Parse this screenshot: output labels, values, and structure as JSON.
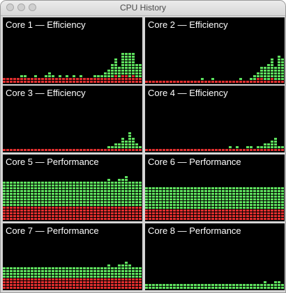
{
  "window": {
    "title": "CPU History",
    "traffic_lights": [
      "close-button",
      "minimize-button",
      "zoom-button"
    ]
  },
  "colors": {
    "panel_bg": "#000000",
    "user_load": "#5ee05e",
    "system_load": "#e02e2e"
  },
  "cores": [
    {
      "label": "Core 1 — Efficiency",
      "user": [
        0,
        0,
        0,
        0,
        0,
        1,
        1,
        0,
        0,
        1,
        0,
        0,
        1,
        2,
        1,
        0,
        1,
        0,
        1,
        0,
        1,
        0,
        1,
        0,
        0,
        0,
        1,
        1,
        1,
        2,
        3,
        5,
        6,
        4,
        8,
        8,
        9,
        8,
        5,
        5
      ],
      "system": [
        2,
        2,
        2,
        2,
        2,
        2,
        2,
        2,
        2,
        2,
        2,
        2,
        2,
        2,
        2,
        2,
        2,
        2,
        2,
        2,
        2,
        2,
        2,
        2,
        2,
        2,
        2,
        2,
        2,
        2,
        2,
        2,
        3,
        2,
        3,
        3,
        2,
        3,
        2,
        2
      ]
    },
    {
      "label": "Core 2 — Efficiency",
      "user": [
        0,
        0,
        0,
        0,
        0,
        0,
        0,
        0,
        0,
        0,
        0,
        0,
        0,
        0,
        0,
        0,
        1,
        0,
        0,
        1,
        0,
        0,
        0,
        0,
        0,
        0,
        0,
        1,
        0,
        0,
        1,
        2,
        2,
        4,
        5,
        6,
        7,
        5,
        9,
        8
      ],
      "system": [
        1,
        1,
        1,
        1,
        1,
        1,
        1,
        1,
        1,
        1,
        1,
        1,
        1,
        1,
        1,
        1,
        1,
        1,
        1,
        1,
        1,
        1,
        1,
        1,
        1,
        1,
        1,
        1,
        1,
        1,
        1,
        1,
        2,
        2,
        1,
        1,
        2,
        1,
        1,
        1
      ]
    },
    {
      "label": "Core 3 — Efficiency",
      "user": [
        0,
        0,
        0,
        0,
        0,
        0,
        0,
        0,
        0,
        0,
        0,
        0,
        0,
        0,
        0,
        0,
        0,
        0,
        0,
        0,
        0,
        0,
        0,
        0,
        0,
        0,
        0,
        0,
        0,
        0,
        1,
        1,
        2,
        2,
        4,
        3,
        6,
        4,
        2,
        1
      ],
      "system": [
        1,
        1,
        1,
        1,
        1,
        1,
        1,
        1,
        1,
        1,
        1,
        1,
        1,
        1,
        1,
        1,
        1,
        1,
        1,
        1,
        1,
        1,
        1,
        1,
        1,
        1,
        1,
        1,
        1,
        1,
        1,
        1,
        1,
        1,
        1,
        1,
        1,
        1,
        1,
        1
      ]
    },
    {
      "label": "Core 4 — Efficiency",
      "user": [
        0,
        0,
        0,
        0,
        0,
        0,
        0,
        0,
        0,
        0,
        0,
        0,
        0,
        0,
        0,
        0,
        0,
        0,
        0,
        0,
        0,
        0,
        0,
        0,
        1,
        0,
        1,
        0,
        0,
        1,
        1,
        0,
        1,
        1,
        2,
        2,
        3,
        4,
        1,
        1
      ],
      "system": [
        1,
        1,
        1,
        1,
        1,
        1,
        1,
        1,
        1,
        1,
        1,
        1,
        1,
        1,
        1,
        1,
        1,
        1,
        1,
        1,
        1,
        1,
        1,
        1,
        1,
        1,
        1,
        1,
        1,
        1,
        1,
        1,
        1,
        1,
        1,
        1,
        1,
        1,
        1,
        1
      ]
    },
    {
      "label": "Core 5 — Performance",
      "user": [
        9,
        9,
        9,
        9,
        9,
        9,
        9,
        9,
        9,
        9,
        9,
        9,
        9,
        9,
        9,
        9,
        9,
        9,
        9,
        9,
        9,
        9,
        9,
        9,
        9,
        9,
        9,
        9,
        9,
        9,
        10,
        9,
        9,
        10,
        10,
        11,
        9,
        9,
        9,
        9
      ],
      "system": [
        5,
        5,
        5,
        5,
        5,
        5,
        5,
        5,
        5,
        5,
        5,
        5,
        5,
        5,
        5,
        5,
        5,
        5,
        5,
        5,
        5,
        5,
        5,
        5,
        5,
        5,
        5,
        5,
        5,
        5,
        5,
        5,
        5,
        5,
        5,
        5,
        5,
        5,
        5,
        5
      ]
    },
    {
      "label": "Core 6 — Performance",
      "user": [
        8,
        8,
        8,
        8,
        8,
        8,
        8,
        8,
        8,
        8,
        8,
        8,
        8,
        8,
        8,
        8,
        8,
        8,
        8,
        8,
        8,
        8,
        8,
        8,
        8,
        8,
        8,
        8,
        8,
        8,
        8,
        8,
        8,
        8,
        8,
        8,
        8,
        8,
        8,
        8
      ],
      "system": [
        4,
        4,
        4,
        4,
        4,
        4,
        4,
        4,
        4,
        4,
        4,
        4,
        4,
        4,
        4,
        4,
        4,
        4,
        4,
        4,
        4,
        4,
        4,
        4,
        4,
        4,
        4,
        4,
        4,
        4,
        4,
        4,
        4,
        4,
        4,
        4,
        4,
        4,
        4,
        4
      ]
    },
    {
      "label": "Core 7 — Performance",
      "user": [
        4,
        4,
        4,
        4,
        4,
        4,
        4,
        4,
        4,
        4,
        4,
        4,
        4,
        4,
        4,
        4,
        4,
        4,
        4,
        4,
        4,
        4,
        4,
        4,
        4,
        4,
        4,
        4,
        4,
        4,
        5,
        4,
        4,
        5,
        5,
        6,
        5,
        4,
        4,
        4
      ],
      "system": [
        4,
        4,
        4,
        4,
        4,
        4,
        4,
        4,
        4,
        4,
        4,
        4,
        4,
        4,
        4,
        4,
        4,
        4,
        4,
        4,
        4,
        4,
        4,
        4,
        4,
        4,
        4,
        4,
        4,
        4,
        4,
        4,
        4,
        4,
        4,
        4,
        4,
        4,
        4,
        4
      ]
    },
    {
      "label": "Core 8 — Performance",
      "user": [
        2,
        2,
        2,
        2,
        2,
        2,
        2,
        2,
        2,
        2,
        2,
        2,
        2,
        2,
        2,
        2,
        2,
        2,
        2,
        2,
        2,
        2,
        2,
        2,
        2,
        2,
        2,
        2,
        2,
        2,
        2,
        2,
        2,
        2,
        3,
        2,
        2,
        3,
        3,
        2
      ],
      "system": [
        0,
        0,
        0,
        0,
        0,
        0,
        0,
        0,
        0,
        0,
        0,
        0,
        0,
        0,
        0,
        0,
        0,
        0,
        0,
        0,
        0,
        0,
        0,
        0,
        0,
        0,
        0,
        0,
        0,
        0,
        0,
        0,
        0,
        0,
        0,
        0,
        0,
        0,
        0,
        0
      ]
    }
  ]
}
